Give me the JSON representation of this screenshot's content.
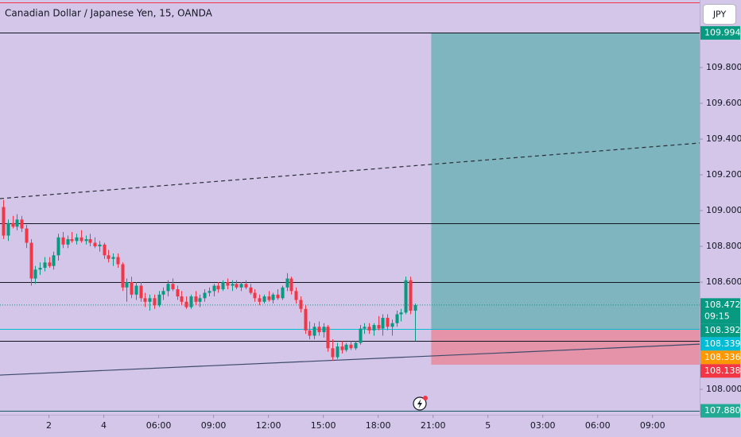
{
  "chart_data": {
    "type": "candlestick",
    "title": "Canadian Dollar / Japanese Yen, 15, OANDA",
    "currency": "JPY",
    "up_color": "#089981",
    "down_color": "#f23645",
    "xlim": [
      -0.7,
      152.3
    ],
    "ylim": [
      107.858,
      110.178
    ],
    "xticks": [
      {
        "value": 10,
        "label": "2"
      },
      {
        "value": 22,
        "label": "4"
      },
      {
        "value": 34,
        "label": "06:00"
      },
      {
        "value": 46,
        "label": "09:00"
      },
      {
        "value": 58,
        "label": "12:00"
      },
      {
        "value": 70,
        "label": "15:00"
      },
      {
        "value": 82,
        "label": "18:00"
      },
      {
        "value": 94,
        "label": "21:00"
      },
      {
        "value": 106,
        "label": "5"
      },
      {
        "value": 118,
        "label": "03:00"
      },
      {
        "value": 130,
        "label": "06:00"
      },
      {
        "value": 142,
        "label": "09:00"
      }
    ],
    "yticks": [
      {
        "value": 109.8,
        "label": "109.800"
      },
      {
        "value": 109.6,
        "label": "109.600"
      },
      {
        "value": 109.4,
        "label": "109.400"
      },
      {
        "value": 109.2,
        "label": "109.200"
      },
      {
        "value": 109,
        "label": "109.000"
      },
      {
        "value": 108.8,
        "label": "108.800"
      },
      {
        "value": 108.6,
        "label": "108.600"
      },
      {
        "value": 108,
        "label": "108.000"
      }
    ],
    "grid": false,
    "candles": [
      [
        109.02,
        109.06,
        108.84,
        108.86
      ],
      [
        108.86,
        108.95,
        108.83,
        108.93
      ],
      [
        108.93,
        108.97,
        108.9,
        108.91
      ],
      [
        108.91,
        108.98,
        108.89,
        108.95
      ],
      [
        108.95,
        108.97,
        108.88,
        108.9
      ],
      [
        108.9,
        108.92,
        108.79,
        108.82
      ],
      [
        108.82,
        108.84,
        108.58,
        108.62
      ],
      [
        108.62,
        108.69,
        108.59,
        108.67
      ],
      [
        108.67,
        108.71,
        108.64,
        108.68
      ],
      [
        108.68,
        108.74,
        108.66,
        108.71
      ],
      [
        108.71,
        108.74,
        108.68,
        108.69
      ],
      [
        108.69,
        108.77,
        108.67,
        108.75
      ],
      [
        108.75,
        108.87,
        108.72,
        108.85
      ],
      [
        108.85,
        108.88,
        108.79,
        108.81
      ],
      [
        108.81,
        108.86,
        108.79,
        108.84
      ],
      [
        108.84,
        108.88,
        108.82,
        108.83
      ],
      [
        108.83,
        108.87,
        108.81,
        108.85
      ],
      [
        108.85,
        108.89,
        108.82,
        108.83
      ],
      [
        108.83,
        108.86,
        108.81,
        108.84
      ],
      [
        108.84,
        108.87,
        108.8,
        108.82
      ],
      [
        108.82,
        108.85,
        108.79,
        108.8
      ],
      [
        108.8,
        108.83,
        108.77,
        108.81
      ],
      [
        108.81,
        108.82,
        108.73,
        108.75
      ],
      [
        108.75,
        108.78,
        108.71,
        108.73
      ],
      [
        108.73,
        108.76,
        108.69,
        108.74
      ],
      [
        108.74,
        108.76,
        108.68,
        108.7
      ],
      [
        108.7,
        108.71,
        108.55,
        108.57
      ],
      [
        108.57,
        108.62,
        108.49,
        108.6
      ],
      [
        108.6,
        108.63,
        108.51,
        108.53
      ],
      [
        108.53,
        108.6,
        108.5,
        108.58
      ],
      [
        108.58,
        108.6,
        108.49,
        108.51
      ],
      [
        108.51,
        108.54,
        108.46,
        108.49
      ],
      [
        108.49,
        108.53,
        108.44,
        108.51
      ],
      [
        108.51,
        108.53,
        108.45,
        108.47
      ],
      [
        108.47,
        108.55,
        108.46,
        108.53
      ],
      [
        108.53,
        108.57,
        108.5,
        108.55
      ],
      [
        108.55,
        108.61,
        108.52,
        108.59
      ],
      [
        108.59,
        108.62,
        108.55,
        108.56
      ],
      [
        108.56,
        108.58,
        108.5,
        108.52
      ],
      [
        108.52,
        108.55,
        108.47,
        108.49
      ],
      [
        108.49,
        108.52,
        108.45,
        108.46
      ],
      [
        108.46,
        108.53,
        108.45,
        108.52
      ],
      [
        108.52,
        108.55,
        108.47,
        108.49
      ],
      [
        108.49,
        108.53,
        108.46,
        108.51
      ],
      [
        108.51,
        108.56,
        108.49,
        108.54
      ],
      [
        108.54,
        108.57,
        108.52,
        108.55
      ],
      [
        108.55,
        108.59,
        108.52,
        108.58
      ],
      [
        108.58,
        108.6,
        108.54,
        108.56
      ],
      [
        108.56,
        108.61,
        108.55,
        108.6
      ],
      [
        108.6,
        108.62,
        108.56,
        108.58
      ],
      [
        108.58,
        108.61,
        108.55,
        108.59
      ],
      [
        108.59,
        108.61,
        108.56,
        108.57
      ],
      [
        108.57,
        108.6,
        108.55,
        108.59
      ],
      [
        108.59,
        108.61,
        108.56,
        108.57
      ],
      [
        108.57,
        108.59,
        108.53,
        108.54
      ],
      [
        108.54,
        108.56,
        108.49,
        108.51
      ],
      [
        108.51,
        108.53,
        108.47,
        108.49
      ],
      [
        108.49,
        108.53,
        108.48,
        108.52
      ],
      [
        108.52,
        108.55,
        108.49,
        108.5
      ],
      [
        108.5,
        108.54,
        108.48,
        108.53
      ],
      [
        108.53,
        108.56,
        108.5,
        108.51
      ],
      [
        108.51,
        108.58,
        108.5,
        108.57
      ],
      [
        108.57,
        108.65,
        108.55,
        108.62
      ],
      [
        108.62,
        108.63,
        108.53,
        108.55
      ],
      [
        108.55,
        108.57,
        108.48,
        108.5
      ],
      [
        108.5,
        108.52,
        108.43,
        108.45
      ],
      [
        108.45,
        108.47,
        108.31,
        108.33
      ],
      [
        108.33,
        108.38,
        108.28,
        108.3
      ],
      [
        108.3,
        108.37,
        108.28,
        108.35
      ],
      [
        108.35,
        108.38,
        108.3,
        108.32
      ],
      [
        108.32,
        108.37,
        108.29,
        108.35
      ],
      [
        108.35,
        108.36,
        108.21,
        108.23
      ],
      [
        108.23,
        108.28,
        108.16,
        108.18
      ],
      [
        108.18,
        108.26,
        108.17,
        108.24
      ],
      [
        108.24,
        108.27,
        108.2,
        108.22
      ],
      [
        108.22,
        108.26,
        108.21,
        108.25
      ],
      [
        108.25,
        108.27,
        108.22,
        108.23
      ],
      [
        108.23,
        108.27,
        108.22,
        108.26
      ],
      [
        108.26,
        108.36,
        108.25,
        108.34
      ],
      [
        108.34,
        108.37,
        108.31,
        108.35
      ],
      [
        108.35,
        108.37,
        108.31,
        108.33
      ],
      [
        108.33,
        108.37,
        108.3,
        108.36
      ],
      [
        108.36,
        108.41,
        108.33,
        108.34
      ],
      [
        108.34,
        108.42,
        108.3,
        108.4
      ],
      [
        108.4,
        108.42,
        108.33,
        108.35
      ],
      [
        108.35,
        108.39,
        108.3,
        108.37
      ],
      [
        108.37,
        108.44,
        108.35,
        108.42
      ],
      [
        108.42,
        108.45,
        108.38,
        108.43
      ],
      [
        108.43,
        108.63,
        108.42,
        108.61
      ],
      [
        108.61,
        108.63,
        108.42,
        108.44
      ],
      [
        108.44,
        108.48,
        108.27,
        108.472
      ]
    ],
    "levels": [
      {
        "value": 110.165,
        "color": "#f23645"
      },
      {
        "value": 109.994,
        "color": "#131722"
      },
      {
        "value": 108.93,
        "color": "#131722"
      },
      {
        "value": 108.6,
        "color": "#131722"
      },
      {
        "value": 108.339,
        "color": "#00bcd4"
      },
      {
        "value": 108.271,
        "color": "#131722"
      },
      {
        "value": 107.88,
        "color": "#1a5c66"
      }
    ],
    "trend_lines": [
      {
        "x": [
          -0.7,
          152.3
        ],
        "y": [
          109.067,
          109.378
        ],
        "dashed": true,
        "color": "#2a2e39"
      },
      {
        "x": [
          -0.7,
          152.3
        ],
        "y": [
          108.08,
          108.253
        ],
        "dashed": false,
        "color": "#3d4a6b"
      }
    ],
    "position": {
      "start": 93.6,
      "entry": 108.336,
      "target": 109.994,
      "stop": 108.138,
      "profit_color": "#7fb5bf",
      "loss_color": "#e493a8"
    },
    "price_tags": [
      {
        "value": 109.994,
        "color": "#089981"
      },
      {
        "value": 108.472,
        "sub": "09:15",
        "color": "#089981"
      },
      {
        "value": 108.392,
        "color": "#089981"
      },
      {
        "value": 108.339,
        "color": "#00bcd4"
      },
      {
        "value": 108.336,
        "color": "#ff9800"
      },
      {
        "value": 108.138,
        "color": "#f23645"
      },
      {
        "value": 107.88,
        "label": "107.880",
        "color": "#22ab94"
      }
    ]
  }
}
